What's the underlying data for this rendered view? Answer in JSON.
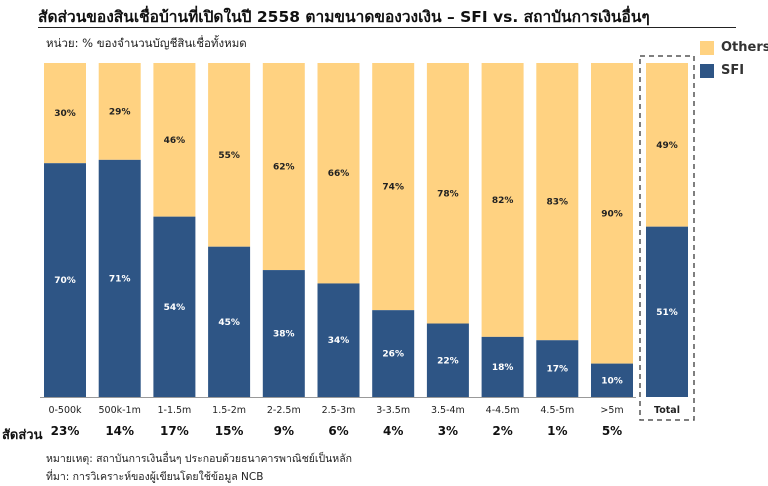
{
  "title": "สัดส่วนของสินเชื่อบ้านที่เปิดในปี 2558 ตามขนาดของวงเงิน – SFI vs. สถาบันการเงินอื่นๆ",
  "unit_note": "หน่วย: % ของจำนวนบัญชีสินเชื่อทั้งหมด",
  "share_row_label": "สัดส่วน",
  "footnote": "หมายเหตุ: สถาบันการเงินอื่นๆ ประกอบด้วยธนาคารพาณิชย์เป็นหลัก",
  "source": "ที่มา: การวิเคราะห์ของผู้เขียนโดยใช้ข้อมูล NCB",
  "colors": {
    "sfi": "#2e5585",
    "others": "#ffd281"
  },
  "legend": [
    {
      "key": "others",
      "label": "Others"
    },
    {
      "key": "sfi",
      "label": "SFI"
    }
  ],
  "chart_data": {
    "type": "bar",
    "stacked": true,
    "percent_stacked": true,
    "categories": [
      "0-500k",
      "500k-1m",
      "1-1.5m",
      "1.5-2m",
      "2-2.5m",
      "2.5-3m",
      "3-3.5m",
      "3.5-4m",
      "4-4.5m",
      "4.5-5m",
      ">5m",
      "Total"
    ],
    "series": [
      {
        "name": "SFI",
        "values": [
          70,
          71,
          54,
          45,
          38,
          34,
          26,
          22,
          18,
          17,
          10,
          51
        ]
      },
      {
        "name": "Others",
        "values": [
          30,
          29,
          46,
          55,
          62,
          66,
          74,
          78,
          82,
          83,
          90,
          49
        ]
      }
    ],
    "share_row": [
      "23%",
      "14%",
      "17%",
      "15%",
      "9%",
      "6%",
      "4%",
      "3%",
      "2%",
      "1%",
      "5%",
      ""
    ],
    "ylim": [
      0,
      100
    ],
    "grid": false,
    "legend_position": "top-right",
    "highlighted_category": "Total"
  }
}
